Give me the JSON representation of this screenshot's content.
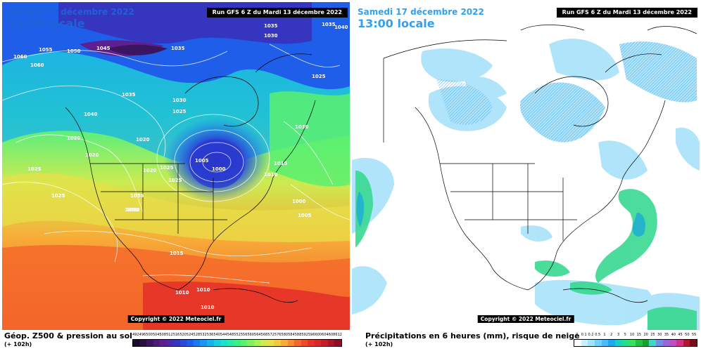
{
  "panels": {
    "left": {
      "date": "Samedi 17 décembre 2022",
      "time": "13:00 locale",
      "run": "Run GFS 6 Z du Mardi 13 décembre 2022",
      "copyright": "Copyright © 2022 Meteociel.fr",
      "caption": "Géop. Z500 & pression au sol",
      "hours": "(+ 102h)",
      "isobar_labels": [
        "1025",
        "1035",
        "1030",
        "1045",
        "1055",
        "1050",
        "1060",
        "1060",
        "1035",
        "1030",
        "1025",
        "1035",
        "1040",
        "1040",
        "1035",
        "1020",
        "1020",
        "1025",
        "1025",
        "1030",
        "1020",
        "1020",
        "1025",
        "1025",
        "1005",
        "1000",
        "1010",
        "1015",
        "1030",
        "1000",
        "1005",
        "1035",
        "1030",
        "1015",
        "1010",
        "1010",
        "1010",
        "1025"
      ],
      "legend_labels": [
        "492",
        "496",
        "500",
        "504",
        "508",
        "512",
        "516",
        "520",
        "524",
        "528",
        "532",
        "536",
        "540",
        "544",
        "548",
        "552",
        "556",
        "560",
        "564",
        "568",
        "572",
        "576",
        "580",
        "584",
        "588",
        "592",
        "596",
        "600",
        "604",
        "608",
        "612"
      ]
    },
    "right": {
      "date": "Samedi 17 décembre 2022",
      "time": "13:00 locale",
      "run": "Run GFS 6 Z du Mardi 13 décembre 2022",
      "copyright": "Copyright © 2022 Meteociel.fr",
      "caption": "Précipitations en 6 heures (mm), risque de neige",
      "hours": "(+ 102h)",
      "legend_labels": [
        "0",
        "0.1",
        "0.2",
        "0.5",
        "1",
        "2",
        "3",
        "5",
        "10",
        "15",
        "20",
        "25",
        "30",
        "35",
        "40",
        "45",
        "50",
        "55"
      ]
    }
  },
  "colors": {
    "geop_scale": [
      "#1a0a2e",
      "#2a1040",
      "#3b1560",
      "#4d1a7a",
      "#5e2090",
      "#4b2aa8",
      "#3535c0",
      "#2a4ad6",
      "#1f5ee8",
      "#1a7af0",
      "#1a96f0",
      "#1ab2ec",
      "#1acce0",
      "#1ee0c8",
      "#28eca8",
      "#3cf088",
      "#5af070",
      "#80f060",
      "#a8f058",
      "#cceb50",
      "#e8e048",
      "#f4c840",
      "#f8ac38",
      "#f88c30",
      "#f46a2a",
      "#ee4c28",
      "#e63228",
      "#d82828",
      "#c41e2a",
      "#a8162a",
      "#8a1028"
    ],
    "precip_scale": [
      "#ffffff",
      "#c8f0ff",
      "#9fe4ff",
      "#70d0ff",
      "#48bcf8",
      "#1ea8f0",
      "#18d0c8",
      "#20e08a",
      "#38e060",
      "#20c040",
      "#18a030",
      "#40d8c0",
      "#7090e8",
      "#9868d8",
      "#c050c0",
      "#d83080",
      "#b01830",
      "#800818"
    ]
  }
}
